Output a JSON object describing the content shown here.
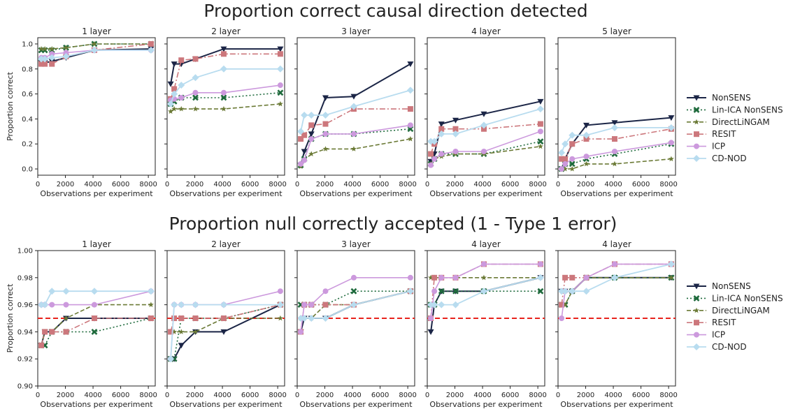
{
  "figure_rows": [
    {
      "title": "Proportion correct causal direction detected"
    },
    {
      "title": "Proportion null correctly accepted (1 - Type 1 error)"
    }
  ],
  "colors": {
    "NonSENS": "#1b2546",
    "Lin-ICA NonSENS": "#1e6a3c",
    "DirectLiNGAM": "#6b7a36",
    "RESIT": "#cc777c",
    "ICP": "#cc99dd",
    "CD-NOD": "#b8dcef",
    "threshold": "#e8231d"
  },
  "chart_data": [
    {
      "type": "line",
      "row": 0,
      "panel": 0,
      "title": "1 layer",
      "xlabel": "Observations per experiment",
      "ylabel": "Proportion correct",
      "xlim": [
        0,
        8500
      ],
      "ylim": [
        -0.05,
        1.05
      ],
      "xticks": [
        "0",
        "2000",
        "4000",
        "6000",
        "8000"
      ],
      "yticks": [
        "0.0",
        "0.2",
        "0.4",
        "0.6",
        "0.8",
        "1.0"
      ],
      "x": [
        256,
        512,
        1024,
        2048,
        4096,
        8192
      ],
      "series": [
        {
          "name": "NonSENS",
          "values": [
            0.85,
            0.85,
            0.86,
            0.89,
            0.95,
            0.96
          ]
        },
        {
          "name": "Lin-ICA NonSENS",
          "values": [
            0.95,
            0.95,
            0.95,
            0.97,
            1.0,
            1.0
          ]
        },
        {
          "name": "DirectLiNGAM",
          "values": [
            0.96,
            0.96,
            0.96,
            0.97,
            1.0,
            1.0
          ]
        },
        {
          "name": "RESIT",
          "values": [
            0.84,
            0.84,
            0.84,
            0.9,
            0.95,
            1.0
          ]
        },
        {
          "name": "ICP",
          "values": [
            0.89,
            0.89,
            0.92,
            0.93,
            0.95,
            0.95
          ]
        },
        {
          "name": "CD-NOD",
          "values": [
            0.88,
            0.88,
            0.89,
            0.9,
            0.95,
            0.95
          ]
        }
      ]
    },
    {
      "type": "line",
      "row": 0,
      "panel": 1,
      "title": "2 layer",
      "xlabel": "Observations per experiment",
      "ylim": [
        -0.05,
        1.05
      ],
      "xlim": [
        0,
        8500
      ],
      "xticks": [
        "0",
        "2000",
        "4000",
        "6000",
        "8000"
      ],
      "x": [
        256,
        512,
        1024,
        2048,
        4096,
        8192
      ],
      "series": [
        {
          "name": "NonSENS",
          "values": [
            0.68,
            0.84,
            0.84,
            0.88,
            0.96,
            0.96
          ]
        },
        {
          "name": "Lin-ICA NonSENS",
          "values": [
            0.52,
            0.54,
            0.57,
            0.57,
            0.57,
            0.61
          ]
        },
        {
          "name": "DirectLiNGAM",
          "values": [
            0.46,
            0.48,
            0.48,
            0.48,
            0.48,
            0.52
          ]
        },
        {
          "name": "RESIT",
          "values": [
            0.56,
            0.64,
            0.87,
            0.88,
            0.92,
            0.92
          ]
        },
        {
          "name": "ICP",
          "values": [
            0.55,
            0.56,
            0.57,
            0.61,
            0.61,
            0.67
          ]
        },
        {
          "name": "CD-NOD",
          "values": [
            0.52,
            0.6,
            0.67,
            0.73,
            0.8,
            0.8
          ]
        }
      ]
    },
    {
      "type": "line",
      "row": 0,
      "panel": 2,
      "title": "3 layer",
      "xlabel": "Observations per experiment",
      "ylim": [
        -0.05,
        1.05
      ],
      "xlim": [
        0,
        8500
      ],
      "xticks": [
        "0",
        "2000",
        "4000",
        "6000",
        "8000"
      ],
      "x": [
        256,
        512,
        1024,
        2048,
        4096,
        8192
      ],
      "series": [
        {
          "name": "NonSENS",
          "values": [
            0.03,
            0.14,
            0.28,
            0.57,
            0.58,
            0.84
          ]
        },
        {
          "name": "Lin-ICA NonSENS",
          "values": [
            0.03,
            0.08,
            0.24,
            0.28,
            0.28,
            0.32
          ]
        },
        {
          "name": "DirectLiNGAM",
          "values": [
            0.02,
            0.07,
            0.12,
            0.16,
            0.16,
            0.24
          ]
        },
        {
          "name": "RESIT",
          "values": [
            0.24,
            0.27,
            0.35,
            0.36,
            0.48,
            0.48
          ]
        },
        {
          "name": "ICP",
          "values": [
            0.04,
            0.07,
            0.24,
            0.28,
            0.28,
            0.35
          ]
        },
        {
          "name": "CD-NOD",
          "values": [
            0.3,
            0.43,
            0.43,
            0.43,
            0.5,
            0.63
          ]
        }
      ]
    },
    {
      "type": "line",
      "row": 0,
      "panel": 3,
      "title": "4 layer",
      "xlabel": "Observations per experiment",
      "ylim": [
        -0.05,
        1.05
      ],
      "xlim": [
        0,
        8500
      ],
      "xticks": [
        "0",
        "2000",
        "4000",
        "6000",
        "8000"
      ],
      "x": [
        256,
        512,
        1024,
        2048,
        4096,
        8192
      ],
      "series": [
        {
          "name": "NonSENS",
          "values": [
            0.06,
            0.12,
            0.36,
            0.39,
            0.44,
            0.54
          ]
        },
        {
          "name": "Lin-ICA NonSENS",
          "values": [
            0.04,
            0.08,
            0.12,
            0.12,
            0.12,
            0.22
          ]
        },
        {
          "name": "DirectLiNGAM",
          "values": [
            0.04,
            0.08,
            0.1,
            0.12,
            0.12,
            0.18
          ]
        },
        {
          "name": "RESIT",
          "values": [
            0.12,
            0.2,
            0.32,
            0.32,
            0.32,
            0.36
          ]
        },
        {
          "name": "ICP",
          "values": [
            0.03,
            0.08,
            0.12,
            0.14,
            0.14,
            0.3
          ]
        },
        {
          "name": "CD-NOD",
          "values": [
            0.22,
            0.22,
            0.28,
            0.28,
            0.35,
            0.48
          ]
        }
      ]
    },
    {
      "type": "line",
      "row": 0,
      "panel": 4,
      "title": "5 layer",
      "xlabel": "Observations per experiment",
      "ylim": [
        -0.05,
        1.05
      ],
      "xlim": [
        0,
        8500
      ],
      "xticks": [
        "0",
        "2000",
        "4000",
        "6000",
        "8000"
      ],
      "x": [
        256,
        512,
        1024,
        2048,
        4096,
        8192
      ],
      "series": [
        {
          "name": "NonSENS",
          "values": [
            0.0,
            0.08,
            0.2,
            0.35,
            0.37,
            0.41
          ]
        },
        {
          "name": "Lin-ICA NonSENS",
          "values": [
            0.0,
            0.04,
            0.04,
            0.08,
            0.12,
            0.2
          ]
        },
        {
          "name": "DirectLiNGAM",
          "values": [
            0.0,
            0.0,
            0.0,
            0.04,
            0.04,
            0.08
          ]
        },
        {
          "name": "RESIT",
          "values": [
            0.08,
            0.08,
            0.2,
            0.24,
            0.24,
            0.32
          ]
        },
        {
          "name": "ICP",
          "values": [
            0.0,
            0.04,
            0.08,
            0.1,
            0.14,
            0.21
          ]
        },
        {
          "name": "CD-NOD",
          "values": [
            0.13,
            0.2,
            0.27,
            0.27,
            0.33,
            0.33
          ]
        }
      ]
    },
    {
      "type": "line",
      "row": 1,
      "panel": 0,
      "title": "1 layer",
      "xlabel": "Observations per experiment",
      "ylabel": "Proportion correct",
      "xlim": [
        0,
        8500
      ],
      "ylim": [
        0.9,
        1.0
      ],
      "hline": 0.95,
      "xticks": [
        "0",
        "2000",
        "4000",
        "6000",
        "8000"
      ],
      "yticks": [
        "0.90",
        "0.92",
        "0.94",
        "0.96",
        "0.98",
        "1.00"
      ],
      "x": [
        256,
        512,
        1024,
        2048,
        4096,
        8192
      ],
      "series": [
        {
          "name": "NonSENS",
          "values": [
            0.93,
            0.94,
            0.94,
            0.95,
            0.95,
            0.95
          ]
        },
        {
          "name": "Lin-ICA NonSENS",
          "values": [
            0.93,
            0.93,
            0.94,
            0.94,
            0.94,
            0.95
          ]
        },
        {
          "name": "DirectLiNGAM",
          "values": [
            0.93,
            0.94,
            0.94,
            0.95,
            0.96,
            0.96
          ]
        },
        {
          "name": "RESIT",
          "values": [
            0.93,
            0.94,
            0.94,
            0.94,
            0.95,
            0.95
          ]
        },
        {
          "name": "ICP",
          "values": [
            0.96,
            0.96,
            0.96,
            0.96,
            0.96,
            0.97
          ]
        },
        {
          "name": "CD-NOD",
          "values": [
            0.96,
            0.96,
            0.97,
            0.97,
            0.97,
            0.97
          ]
        }
      ]
    },
    {
      "type": "line",
      "row": 1,
      "panel": 1,
      "title": "2 layer",
      "xlabel": "Observations per experiment",
      "xlim": [
        0,
        8500
      ],
      "ylim": [
        0.9,
        1.0
      ],
      "hline": 0.95,
      "xticks": [
        "0",
        "2000",
        "4000",
        "6000",
        "8000"
      ],
      "x": [
        256,
        512,
        1024,
        2048,
        4096,
        8192
      ],
      "series": [
        {
          "name": "NonSENS",
          "values": [
            0.92,
            0.92,
            0.93,
            0.94,
            0.94,
            0.96
          ]
        },
        {
          "name": "Lin-ICA NonSENS",
          "values": [
            0.92,
            0.92,
            0.95,
            0.95,
            0.95,
            0.96
          ]
        },
        {
          "name": "DirectLiNGAM",
          "values": [
            0.94,
            0.94,
            0.94,
            0.94,
            0.95,
            0.95
          ]
        },
        {
          "name": "RESIT",
          "values": [
            0.94,
            0.95,
            0.95,
            0.95,
            0.95,
            0.96
          ]
        },
        {
          "name": "ICP",
          "values": [
            0.92,
            0.96,
            0.96,
            0.96,
            0.96,
            0.97
          ]
        },
        {
          "name": "CD-NOD",
          "values": [
            0.92,
            0.96,
            0.96,
            0.96,
            0.96,
            0.96
          ]
        }
      ]
    },
    {
      "type": "line",
      "row": 1,
      "panel": 2,
      "title": "3 layer",
      "xlabel": "Observations per experiment",
      "xlim": [
        0,
        8500
      ],
      "ylim": [
        0.9,
        1.0
      ],
      "hline": 0.95,
      "xticks": [
        "0",
        "2000",
        "4000",
        "6000",
        "8000"
      ],
      "x": [
        256,
        512,
        1024,
        2048,
        4096,
        8192
      ],
      "series": [
        {
          "name": "NonSENS",
          "values": [
            0.94,
            0.95,
            0.95,
            0.95,
            0.96,
            0.97
          ]
        },
        {
          "name": "Lin-ICA NonSENS",
          "values": [
            0.96,
            0.96,
            0.96,
            0.96,
            0.97,
            0.97
          ]
        },
        {
          "name": "DirectLiNGAM",
          "values": [
            0.95,
            0.95,
            0.95,
            0.96,
            0.96,
            0.97
          ]
        },
        {
          "name": "RESIT",
          "values": [
            0.94,
            0.96,
            0.96,
            0.96,
            0.96,
            0.97
          ]
        },
        {
          "name": "ICP",
          "values": [
            0.94,
            0.96,
            0.96,
            0.97,
            0.98,
            0.98
          ]
        },
        {
          "name": "CD-NOD",
          "values": [
            0.95,
            0.95,
            0.95,
            0.95,
            0.96,
            0.97
          ]
        }
      ]
    },
    {
      "type": "line",
      "row": 1,
      "panel": 3,
      "title": "4 layer",
      "xlabel": "Observations per experiment",
      "xlim": [
        0,
        8500
      ],
      "ylim": [
        0.9,
        1.0
      ],
      "hline": 0.95,
      "xticks": [
        "0",
        "2000",
        "4000",
        "6000",
        "8000"
      ],
      "x": [
        256,
        512,
        1024,
        2048,
        4096,
        8192
      ],
      "series": [
        {
          "name": "NonSENS",
          "values": [
            0.94,
            0.96,
            0.97,
            0.97,
            0.97,
            0.98
          ]
        },
        {
          "name": "Lin-ICA NonSENS",
          "values": [
            0.96,
            0.96,
            0.97,
            0.97,
            0.97,
            0.97
          ]
        },
        {
          "name": "DirectLiNGAM",
          "values": [
            0.98,
            0.98,
            0.98,
            0.98,
            0.98,
            0.98
          ]
        },
        {
          "name": "RESIT",
          "values": [
            0.95,
            0.98,
            0.98,
            0.98,
            0.99,
            0.99
          ]
        },
        {
          "name": "ICP",
          "values": [
            0.95,
            0.97,
            0.98,
            0.98,
            0.99,
            0.99
          ]
        },
        {
          "name": "CD-NOD",
          "values": [
            0.96,
            0.96,
            0.96,
            0.96,
            0.97,
            0.98
          ]
        }
      ]
    },
    {
      "type": "line",
      "row": 1,
      "panel": 4,
      "title": "4 layer",
      "xlabel": "Observations per experiment",
      "xlim": [
        0,
        8500
      ],
      "ylim": [
        0.9,
        1.0
      ],
      "hline": 0.95,
      "xticks": [
        "0",
        "2000",
        "4000",
        "6000",
        "8000"
      ],
      "x": [
        256,
        512,
        1024,
        2048,
        4096,
        8192
      ],
      "series": [
        {
          "name": "NonSENS",
          "values": [
            0.97,
            0.97,
            0.97,
            0.98,
            0.98,
            0.98
          ]
        },
        {
          "name": "Lin-ICA NonSENS",
          "values": [
            0.96,
            0.96,
            0.97,
            0.98,
            0.98,
            0.98
          ]
        },
        {
          "name": "DirectLiNGAM",
          "values": [
            0.96,
            0.96,
            0.97,
            0.98,
            0.98,
            0.98
          ]
        },
        {
          "name": "RESIT",
          "values": [
            0.96,
            0.98,
            0.98,
            0.98,
            0.99,
            0.99
          ]
        },
        {
          "name": "ICP",
          "values": [
            0.95,
            0.97,
            0.97,
            0.98,
            0.99,
            0.99
          ]
        },
        {
          "name": "CD-NOD",
          "values": [
            0.97,
            0.97,
            0.97,
            0.97,
            0.98,
            0.99
          ]
        }
      ]
    }
  ],
  "legend": {
    "placement": "right",
    "entries": [
      "NonSENS",
      "Lin-ICA NonSENS",
      "DirectLiNGAM",
      "RESIT",
      "ICP",
      "CD-NOD"
    ]
  }
}
